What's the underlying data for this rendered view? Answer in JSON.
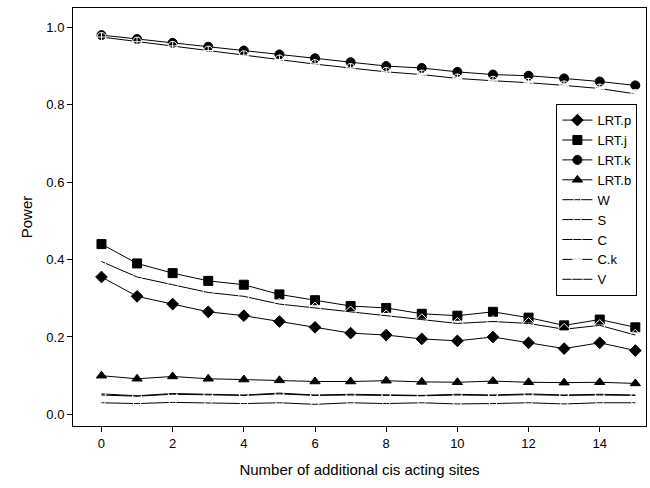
{
  "chart_data": {
    "type": "line",
    "x_label": "Number of additional cis acting sites",
    "y_label": "Power",
    "x": [
      0,
      1,
      2,
      3,
      4,
      5,
      6,
      7,
      8,
      9,
      10,
      11,
      12,
      13,
      14,
      15
    ],
    "xlim": [
      -0.8,
      15.3
    ],
    "xticks": [
      0,
      2,
      4,
      6,
      8,
      10,
      12,
      14
    ],
    "ylim": [
      -0.03,
      1.05
    ],
    "yticks": [
      {
        "value": 0,
        "label": "0.0"
      },
      {
        "value": 0.2,
        "label": "0.2"
      },
      {
        "value": 0.4,
        "label": "0.4"
      },
      {
        "value": 0.6,
        "label": "0.6"
      },
      {
        "value": 0.8,
        "label": "0.8"
      },
      {
        "value": 1,
        "label": "1.0"
      }
    ],
    "grid": false,
    "legend": "right",
    "series": [
      {
        "name": "LRT.p",
        "color": "#000000",
        "marker": "diamond",
        "values": [
          0.355,
          0.305,
          0.285,
          0.265,
          0.255,
          0.24,
          0.225,
          0.21,
          0.205,
          0.195,
          0.19,
          0.2,
          0.185,
          0.17,
          0.185,
          0.165
        ]
      },
      {
        "name": "LRT.j",
        "color": "#000000",
        "marker": "square",
        "values": [
          0.44,
          0.39,
          0.365,
          0.345,
          0.335,
          0.31,
          0.295,
          0.28,
          0.275,
          0.26,
          0.255,
          0.265,
          0.25,
          0.23,
          0.245,
          0.225
        ]
      },
      {
        "name": "LRT.k",
        "color": "#000000",
        "marker": "circle",
        "values": [
          0.98,
          0.97,
          0.96,
          0.95,
          0.94,
          0.93,
          0.92,
          0.91,
          0.9,
          0.895,
          0.885,
          0.878,
          0.875,
          0.868,
          0.86,
          0.85
        ]
      },
      {
        "name": "LRT.b",
        "color": "#000000",
        "marker": "triangle-up",
        "values": [
          0.1,
          0.092,
          0.098,
          0.092,
          0.09,
          0.088,
          0.085,
          0.085,
          0.087,
          0.084,
          0.083,
          0.086,
          0.083,
          0.082,
          0.083,
          0.08
        ]
      },
      {
        "name": "W",
        "color": "#000000",
        "marker": "triangle-up-open",
        "values": [
          0.05,
          0.047,
          0.052,
          0.05,
          0.049,
          0.053,
          0.049,
          0.05,
          0.049,
          0.048,
          0.05,
          0.049,
          0.051,
          0.049,
          0.05,
          0.049
        ]
      },
      {
        "name": "S",
        "color": "#000000",
        "marker": "triangle-down-open",
        "values": [
          0.03,
          0.028,
          0.031,
          0.03,
          0.028,
          0.03,
          0.026,
          0.03,
          0.028,
          0.03,
          0.027,
          0.028,
          0.03,
          0.027,
          0.03,
          0.03
        ]
      },
      {
        "name": "C",
        "color": "#000000",
        "marker": "circle-open",
        "values": [
          0.053,
          0.048,
          0.054,
          0.052,
          0.05,
          0.055,
          0.05,
          0.052,
          0.05,
          0.049,
          0.052,
          0.05,
          0.053,
          0.05,
          0.052,
          0.05
        ]
      },
      {
        "name": "C.k",
        "color": "#000000",
        "marker": "circle-cross-open",
        "values": [
          0.975,
          0.963,
          0.952,
          0.94,
          0.928,
          0.917,
          0.905,
          0.895,
          0.885,
          0.878,
          0.868,
          0.862,
          0.857,
          0.85,
          0.842,
          0.828
        ]
      },
      {
        "name": "V",
        "color": "#000000",
        "marker": "diamond-open",
        "values": [
          0.395,
          0.355,
          0.335,
          0.315,
          0.305,
          0.285,
          0.275,
          0.265,
          0.255,
          0.245,
          0.235,
          0.24,
          0.235,
          0.22,
          0.23,
          0.205
        ]
      }
    ]
  }
}
